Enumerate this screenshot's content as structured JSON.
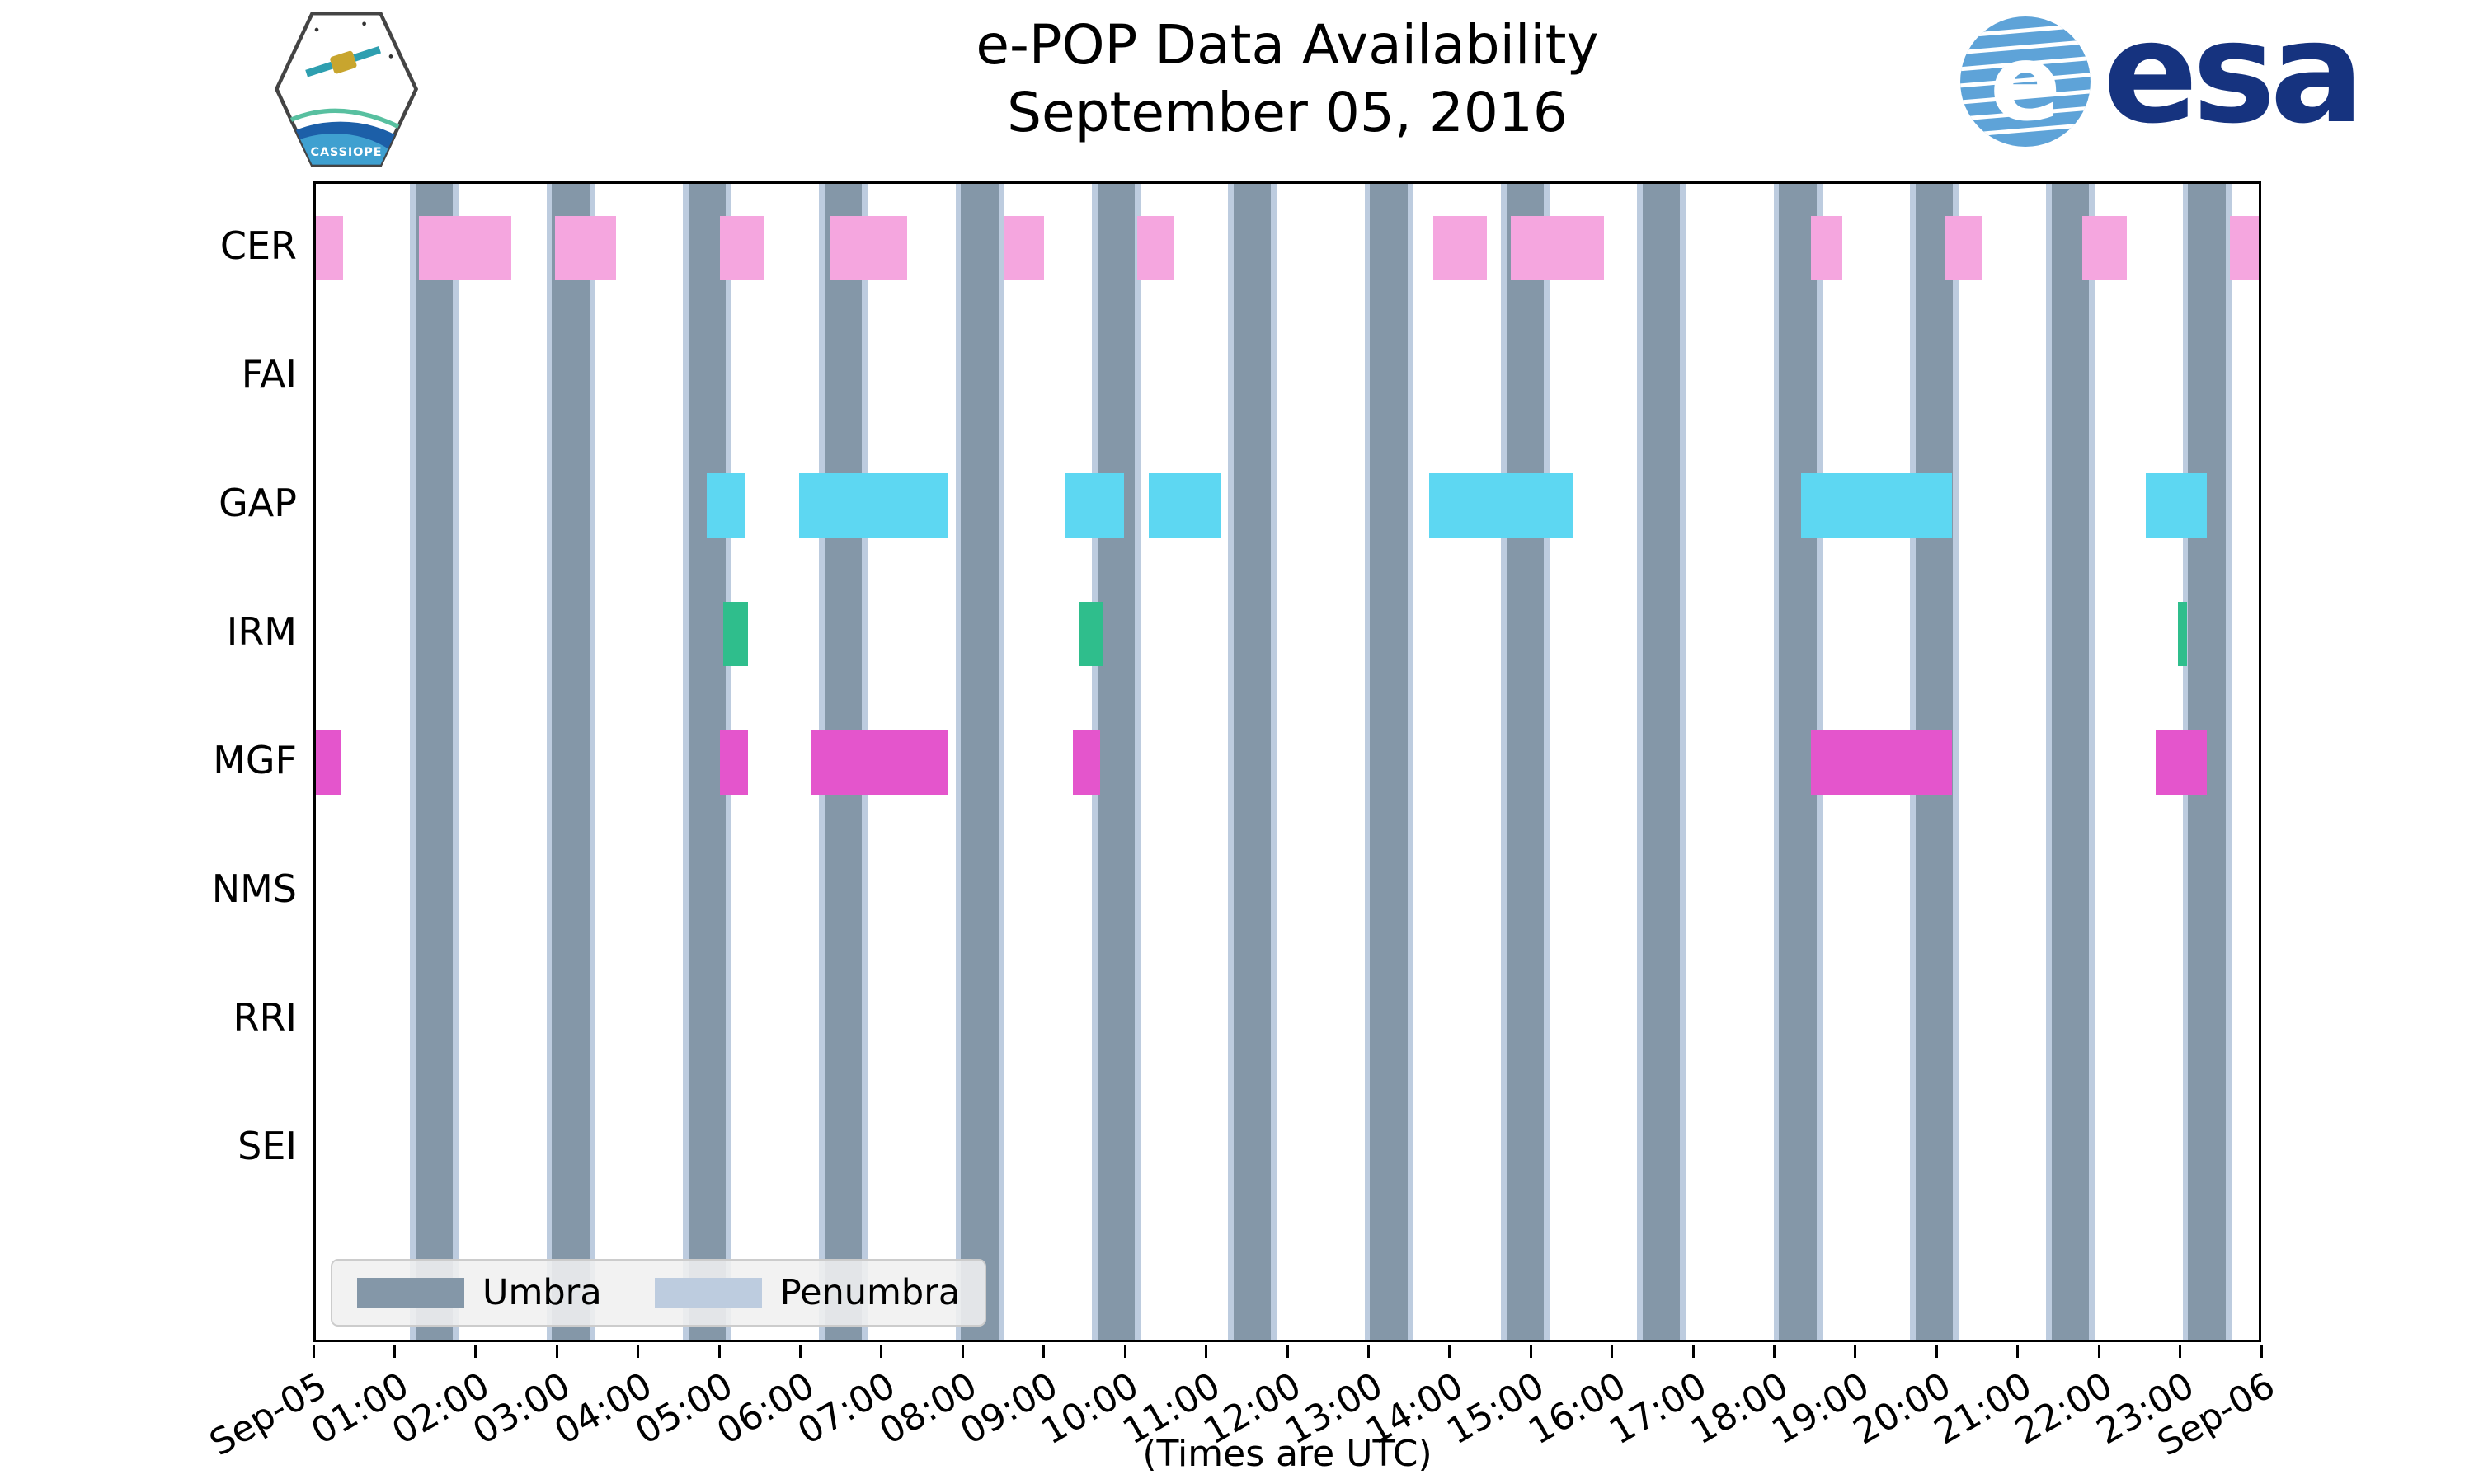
{
  "logos": {
    "cassiope_text": "CASSIOPE",
    "esa_text": "esa"
  },
  "chart_data": {
    "type": "availability-timeline",
    "title": "e-POP Data Availability",
    "subtitle": "September 05, 2016",
    "xlabel": "(Times are UTC)",
    "x_range_hours": [
      0,
      24
    ],
    "x_tick_labels": [
      "Sep-05",
      "01:00",
      "02:00",
      "03:00",
      "04:00",
      "05:00",
      "06:00",
      "07:00",
      "08:00",
      "09:00",
      "10:00",
      "11:00",
      "12:00",
      "13:00",
      "14:00",
      "15:00",
      "16:00",
      "17:00",
      "18:00",
      "19:00",
      "20:00",
      "21:00",
      "22:00",
      "23:00",
      "Sep-06"
    ],
    "instruments": [
      "CER",
      "FAI",
      "GAP",
      "IRM",
      "MGF",
      "NMS",
      "RRI",
      "SEI"
    ],
    "umbra_intervals_hours": [
      [
        1.23,
        1.69
      ],
      [
        2.91,
        3.37
      ],
      [
        4.59,
        5.05
      ],
      [
        6.27,
        6.73
      ],
      [
        7.95,
        8.41
      ],
      [
        9.63,
        10.09
      ],
      [
        11.31,
        11.77
      ],
      [
        12.99,
        13.45
      ],
      [
        14.67,
        15.13
      ],
      [
        16.35,
        16.81
      ],
      [
        18.03,
        18.49
      ],
      [
        19.71,
        20.17
      ],
      [
        21.39,
        21.85
      ],
      [
        23.07,
        23.53
      ]
    ],
    "penumbra_pad_hours": 0.07,
    "series": {
      "CER": [
        [
          0.0,
          0.34
        ],
        [
          1.27,
          2.41
        ],
        [
          2.95,
          3.7
        ],
        [
          4.98,
          5.53
        ],
        [
          6.33,
          7.29
        ],
        [
          8.48,
          8.97
        ],
        [
          10.12,
          10.57
        ],
        [
          13.77,
          14.43
        ],
        [
          14.72,
          15.87
        ],
        [
          18.42,
          18.81
        ],
        [
          20.08,
          20.53
        ],
        [
          21.76,
          22.31
        ],
        [
          23.58,
          24.0
        ]
      ],
      "FAI": [],
      "GAP": [
        [
          4.82,
          5.28
        ],
        [
          5.95,
          7.79
        ],
        [
          9.23,
          9.96
        ],
        [
          10.26,
          11.15
        ],
        [
          13.72,
          15.49
        ],
        [
          18.3,
          20.16
        ],
        [
          22.55,
          23.3
        ]
      ],
      "IRM": [
        [
          5.02,
          5.32
        ],
        [
          9.41,
          9.7
        ],
        [
          22.94,
          23.06
        ]
      ],
      "MGF": [
        [
          0.0,
          0.3
        ],
        [
          4.98,
          5.32
        ],
        [
          6.11,
          7.79
        ],
        [
          9.33,
          9.66
        ],
        [
          18.42,
          20.16
        ],
        [
          22.67,
          23.3
        ]
      ],
      "NMS": [],
      "RRI": [],
      "SEI": []
    },
    "colors": {
      "CER": "#F5A6DF",
      "GAP": "#5DD7F2",
      "IRM": "#2FBE8C",
      "MGF": "#E455CC",
      "umbra": "#8497A8",
      "penumbra": "#BDCCDF"
    },
    "legend": [
      {
        "label": "Umbra"
      },
      {
        "label": "Penumbra"
      }
    ]
  }
}
